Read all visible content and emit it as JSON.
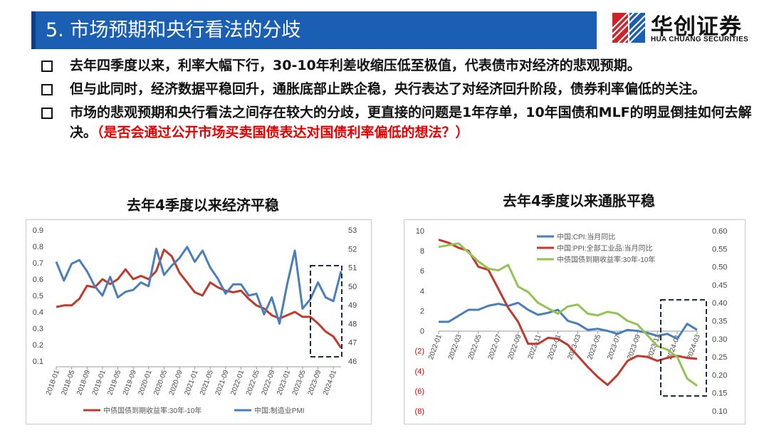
{
  "header": {
    "title": "5. 市场预期和央行看法的分歧"
  },
  "logo": {
    "cn": "华创证券",
    "en": "HUA CHUANG SECURITIES"
  },
  "bullets": [
    {
      "text": "去年四季度以来，利率大幅下行，30-10年利差收缩压低至极值，代表债市对经济的悲观预期。",
      "emphasis": ""
    },
    {
      "text": "但与此同时，经济数据平稳回升，通胀底部止跌企稳，央行表达了对经济回升阶段，债券利率偏低的关注。",
      "emphasis": ""
    },
    {
      "text": "市场的悲观预期和央行看法之间存在较大的分歧，更直接的问题是1年存单，10年国债和MLF的明显倒挂如何去解决。",
      "emphasis": "（是否会通过公开市场买卖国债表达对国债利率偏低的想法？）"
    }
  ],
  "colors": {
    "title_bar": "#1a5fb4",
    "red": "#c0392b",
    "blue": "#4a7ebb",
    "green": "#92c353",
    "emphasis": "#e60000"
  },
  "chart_data": [
    {
      "type": "line",
      "title": "去年4季度以来经济平稳",
      "x_ticks": [
        "2018-01",
        "2018-05",
        "2018-09",
        "2019-01",
        "2019-05",
        "2019-09",
        "2020-01",
        "2020-05",
        "2020-09",
        "2021-01",
        "2021-05",
        "2021-09",
        "2022-01",
        "2022-05",
        "2022-09",
        "2023-01",
        "2023-05",
        "2023-09",
        "2024-01"
      ],
      "x": [
        "2018-01",
        "2018-03",
        "2018-05",
        "2018-07",
        "2018-09",
        "2018-11",
        "2019-01",
        "2019-03",
        "2019-05",
        "2019-07",
        "2019-09",
        "2019-11",
        "2020-01",
        "2020-03",
        "2020-05",
        "2020-07",
        "2020-09",
        "2020-11",
        "2021-01",
        "2021-03",
        "2021-05",
        "2021-07",
        "2021-09",
        "2021-11",
        "2022-01",
        "2022-03",
        "2022-05",
        "2022-07",
        "2022-09",
        "2022-11",
        "2023-01",
        "2023-03",
        "2023-05",
        "2023-07",
        "2023-09",
        "2023-11",
        "2024-01",
        "2024-03"
      ],
      "left_axis": {
        "ticks": [
          "0.9",
          "0.8",
          "0.7",
          "0.6",
          "0.5",
          "0.4",
          "0.3",
          "0.2",
          "0.1"
        ],
        "ylim": [
          0.1,
          0.9
        ]
      },
      "right_axis": {
        "ticks": [
          "53",
          "52",
          "51",
          "50",
          "49",
          "48",
          "47",
          "46"
        ],
        "ylim": [
          46,
          53
        ]
      },
      "series": [
        {
          "name": "中债国债到期收益率:30年-10年",
          "axis": "left",
          "color": "#c0392b",
          "values": [
            0.43,
            0.44,
            0.44,
            0.48,
            0.56,
            0.55,
            0.6,
            0.57,
            0.6,
            0.66,
            0.6,
            0.62,
            0.6,
            0.65,
            0.78,
            0.74,
            0.64,
            0.58,
            0.52,
            0.5,
            0.58,
            0.55,
            0.53,
            0.52,
            0.53,
            0.48,
            0.44,
            0.42,
            0.38,
            0.36,
            0.38,
            0.4,
            0.37,
            0.37,
            0.33,
            0.28,
            0.25,
            0.18
          ]
        },
        {
          "name": "中国:制造业PMI",
          "axis": "right",
          "color": "#4a7ebb",
          "values": [
            51.3,
            50.3,
            51.2,
            51.4,
            50.8,
            50.0,
            49.5,
            50.5,
            49.4,
            49.7,
            49.8,
            50.2,
            50.0,
            52.0,
            50.6,
            51.1,
            51.5,
            52.1,
            51.3,
            51.9,
            51.0,
            50.4,
            49.6,
            50.1,
            50.1,
            49.5,
            49.6,
            48.5,
            49.4,
            48.0,
            50.1,
            51.9,
            48.8,
            49.3,
            50.2,
            49.4,
            49.2,
            50.8
          ]
        }
      ]
    },
    {
      "type": "line",
      "title": "去年4季度以来通胀平稳",
      "x_ticks": [
        "2022-01",
        "2022-03",
        "2022-05",
        "2022-07",
        "2022-09",
        "2022-11",
        "2023-01",
        "2023-03",
        "2023-05",
        "2023-07",
        "2023-09",
        "2023-11",
        "2024-01",
        "2024-03"
      ],
      "x": [
        "2022-01",
        "2022-02",
        "2022-03",
        "2022-04",
        "2022-05",
        "2022-06",
        "2022-07",
        "2022-08",
        "2022-09",
        "2022-10",
        "2022-11",
        "2022-12",
        "2023-01",
        "2023-02",
        "2023-03",
        "2023-04",
        "2023-05",
        "2023-06",
        "2023-07",
        "2023-08",
        "2023-09",
        "2023-10",
        "2023-11",
        "2023-12",
        "2024-01",
        "2024-02",
        "2024-03"
      ],
      "left_axis": {
        "ticks": [
          "10",
          "8",
          "6",
          "4",
          "2",
          "0",
          "(2)",
          "(4)",
          "(6)",
          "(8)"
        ],
        "ylim": [
          -8,
          10
        ]
      },
      "right_axis": {
        "ticks": [
          "0.60",
          "0.55",
          "0.50",
          "0.45",
          "0.40",
          "0.35",
          "0.30",
          "0.25",
          "0.20",
          "0.15",
          "0.10"
        ],
        "ylim": [
          0.1,
          0.6
        ]
      },
      "series": [
        {
          "name": "中国:CPI:当月同比",
          "axis": "left",
          "color": "#4a7ebb",
          "values": [
            0.9,
            0.9,
            1.5,
            2.1,
            2.1,
            2.5,
            2.7,
            2.5,
            2.8,
            2.1,
            1.6,
            1.8,
            2.1,
            1.0,
            0.7,
            0.1,
            0.2,
            0.0,
            -0.3,
            0.1,
            0.0,
            -0.2,
            -0.5,
            -0.3,
            -0.8,
            0.7,
            0.1
          ]
        },
        {
          "name": "中国:PPI:全部工业品:当月同比",
          "axis": "left",
          "color": "#c0392b",
          "values": [
            9.1,
            8.8,
            8.3,
            8.0,
            6.4,
            6.1,
            4.2,
            2.3,
            0.9,
            -1.3,
            -1.3,
            -0.7,
            -0.8,
            -1.4,
            -2.5,
            -3.6,
            -4.6,
            -5.4,
            -4.4,
            -3.0,
            -2.5,
            -2.6,
            -3.0,
            -2.7,
            -2.5,
            -2.7,
            -2.8
          ]
        },
        {
          "name": "中债国债到期收益率:30年-10年",
          "axis": "right",
          "color": "#92c353",
          "values": [
            0.555,
            0.56,
            0.565,
            0.54,
            0.515,
            0.495,
            0.49,
            0.505,
            0.445,
            0.43,
            0.4,
            0.385,
            0.37,
            0.39,
            0.395,
            0.37,
            0.365,
            0.375,
            0.37,
            0.35,
            0.34,
            0.31,
            0.28,
            0.27,
            0.25,
            0.19,
            0.17
          ]
        }
      ]
    }
  ]
}
